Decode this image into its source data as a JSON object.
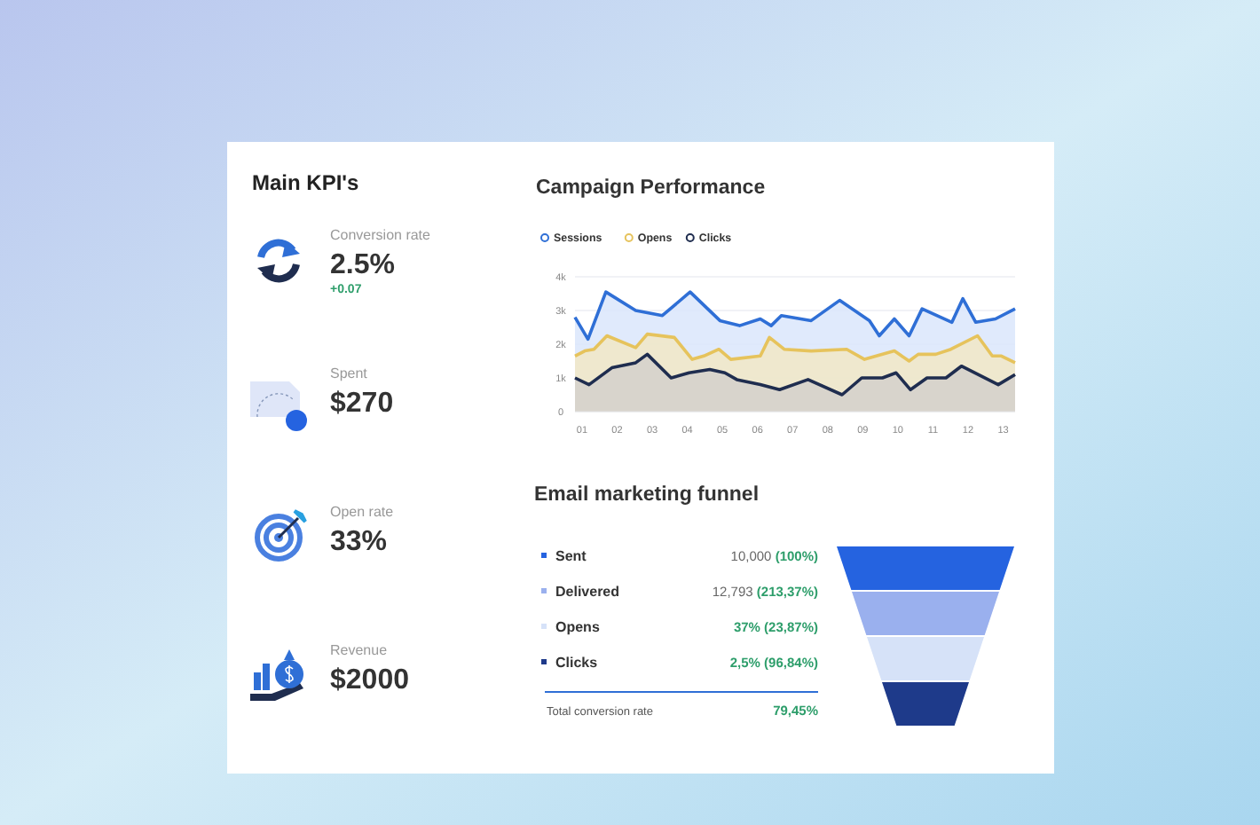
{
  "chart_data": [
    {
      "type": "other",
      "title": "Main KPI's",
      "categories": [
        "Conversion rate",
        "Spent",
        "Open rate",
        "Revenue"
      ],
      "value_labels": [
        "2.5%",
        "$270",
        "33%",
        "$2000"
      ],
      "annotations": [
        "+0.07"
      ]
    },
    {
      "type": "area",
      "title": "Campaign Performance",
      "xlim": [
        0.8,
        13.34
      ],
      "xticks": [
        {
          "value": 1,
          "label": "01"
        },
        {
          "value": 2,
          "label": "02"
        },
        {
          "value": 3,
          "label": "03"
        },
        {
          "value": 4,
          "label": "04"
        },
        {
          "value": 5,
          "label": "05"
        },
        {
          "value": 6,
          "label": "06"
        },
        {
          "value": 7,
          "label": "07"
        },
        {
          "value": 8,
          "label": "08"
        },
        {
          "value": 9,
          "label": "09"
        },
        {
          "value": 10,
          "label": "10"
        },
        {
          "value": 11,
          "label": "11"
        },
        {
          "value": 12,
          "label": "12"
        },
        {
          "value": 13,
          "label": "13"
        }
      ],
      "ylim": [
        0,
        4000
      ],
      "yticks": [
        0,
        {
          "value": 1000,
          "label": "1k"
        },
        {
          "value": 2000,
          "label": "2k"
        },
        {
          "value": 3000,
          "label": "3k"
        },
        {
          "value": 4000,
          "label": "4k"
        }
      ],
      "grid": "y",
      "legend": "top left",
      "marker": "none",
      "line_style": "solid",
      "series": [
        {
          "name": "Sessions",
          "color": "#2f6fd6",
          "x": [
            0.8,
            1.17,
            1.68,
            2.53,
            3.29,
            4.08,
            4.93,
            5.49,
            6.08,
            6.39,
            6.68,
            7.53,
            8.34,
            9.19,
            9.47,
            9.9,
            10.32,
            10.69,
            11.54,
            11.85,
            12.22,
            12.78,
            13.34
          ],
          "values": [
            2800,
            2150,
            3550,
            3000,
            2850,
            3550,
            2700,
            2550,
            2750,
            2550,
            2850,
            2700,
            3300,
            2700,
            2250,
            2750,
            2250,
            3050,
            2650,
            3350,
            2650,
            2750,
            3050
          ]
        },
        {
          "name": "Opens",
          "color": "#e6c35c",
          "x": [
            0.8,
            1.08,
            1.34,
            1.71,
            2.53,
            2.86,
            3.63,
            4.14,
            4.47,
            4.9,
            5.24,
            6.08,
            6.34,
            6.76,
            7.53,
            8.54,
            9.05,
            9.9,
            10.32,
            10.58,
            11.08,
            11.51,
            12.27,
            12.69,
            12.95,
            13.34
          ],
          "values": [
            1650,
            1800,
            1850,
            2250,
            1900,
            2300,
            2200,
            1550,
            1650,
            1850,
            1550,
            1650,
            2200,
            1850,
            1800,
            1850,
            1550,
            1800,
            1500,
            1700,
            1700,
            1850,
            2250,
            1650,
            1650,
            1450
          ]
        },
        {
          "name": "Clicks",
          "color": "#1f2d4f",
          "x": [
            0.8,
            1.2,
            1.85,
            2.53,
            2.86,
            3.54,
            4.05,
            4.64,
            5.07,
            5.41,
            6.08,
            6.63,
            7.44,
            8.41,
            8.97,
            9.56,
            9.95,
            10.36,
            10.83,
            11.37,
            11.81,
            12.86,
            13.34
          ],
          "values": [
            1000,
            800,
            1300,
            1450,
            1700,
            1000,
            1150,
            1250,
            1150,
            950,
            800,
            650,
            950,
            500,
            1000,
            1000,
            1150,
            650,
            1000,
            1000,
            1350,
            800,
            1100
          ]
        }
      ]
    },
    {
      "type": "other",
      "title": "Email marketing funnel",
      "categories": [
        "Sent",
        "Delivered",
        "Opens",
        "Clicks"
      ],
      "value_labels": [
        "10,000 (100%)",
        "12,793 (213,37%)",
        "37% (23,87%)",
        "2,5% (96,84%)"
      ],
      "colors": [
        "#2563e0",
        "#9ab0ee",
        "#d6e2f8",
        "#1e3a8a"
      ],
      "annotations": [
        "Total conversion rate",
        "79,45%"
      ]
    }
  ]
}
